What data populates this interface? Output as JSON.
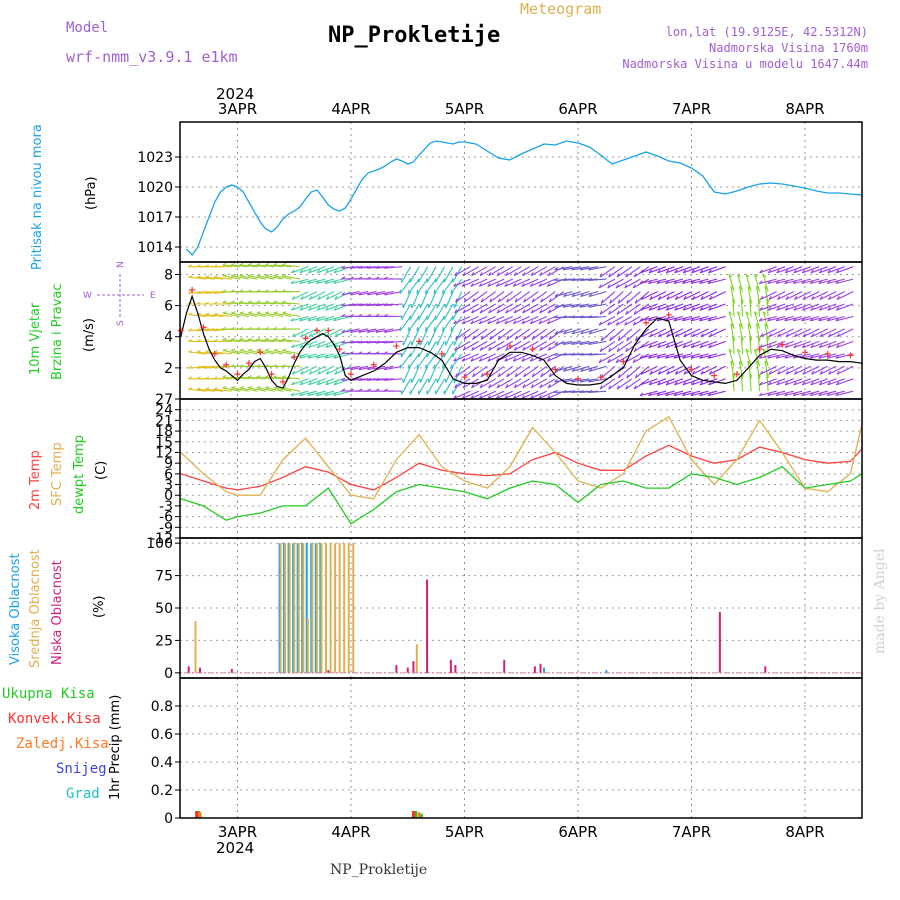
{
  "header": {
    "model_label": "Model",
    "model_name": "wrf-nmm_v3.9.1 e1km",
    "title": "NP_Prokletije",
    "subtitle": "Meteogram",
    "lonlat": "lon,lat (19.9125E, 42.5312N)",
    "elevation": "Nadmorska Visina 1760m",
    "model_elevation": "Nadmorska Visina u modelu 1647.44m"
  },
  "x_axis": {
    "year": "2024",
    "days": [
      "3APR",
      "4APR",
      "5APR",
      "6APR",
      "7APR",
      "8APR"
    ]
  },
  "footer": {
    "station": "NP_Prokletije",
    "credit": "made by Angel"
  },
  "wind_compass": {
    "north": "N",
    "south": "S",
    "west": "W",
    "east": "E"
  },
  "colors": {
    "pressure": "#1aa3e6",
    "wind_speed": "#000000",
    "gust": "#ff3030",
    "t2m": "#ff4040",
    "sfc": "#e0b050",
    "dewpt": "#22cc22",
    "high_cloud": "#1aa3e6",
    "mid_cloud": "#e0b050",
    "low_cloud": "#d0207a"
  },
  "panels": {
    "pressure": {
      "label": "Pritisak na nivou mora",
      "unit": "(hPa)"
    },
    "wind": {
      "label1": "10m Vjetar",
      "label2": "Brzina i Pravac",
      "unit": "(m/s)"
    },
    "temp": {
      "label1": "2m Temp",
      "label2": "SFC Temp",
      "label3": "dewpt Temp",
      "unit": "(C)"
    },
    "cloud": {
      "label1": "Visoka Oblacnost",
      "label2": "Srednja Oblacnost",
      "label3": "Niska Oblacnost",
      "unit": "(%)"
    },
    "precip": {
      "unit": "1hr Precip (mm)",
      "legend": [
        {
          "text": "Ukupna Kisa",
          "color": "#22cc22"
        },
        {
          "text": "Konvek.Kisa",
          "color": "#ff3030"
        },
        {
          "text": "Zaledj.Kisa",
          "color": "#ff7a20"
        },
        {
          "text": "Snijeg",
          "color": "#4040e0"
        },
        {
          "text": "Grad",
          "color": "#20c0c0"
        }
      ]
    }
  },
  "chart_data": [
    {
      "type": "line",
      "name": "pressure",
      "ylabel": "(hPa)",
      "ylim": [
        1012.5,
        1026.5
      ],
      "yticks": [
        "1014",
        "1017",
        "1020",
        "1023"
      ],
      "x": [
        -0.45,
        -0.4,
        -0.35,
        -0.3,
        -0.25,
        -0.2,
        -0.15,
        -0.1,
        -0.05,
        0.0,
        0.05,
        0.1,
        0.15,
        0.2,
        0.25,
        0.3,
        0.35,
        0.4,
        0.45,
        0.5,
        0.55,
        0.6,
        0.65,
        0.7,
        0.75,
        0.8,
        0.85,
        0.9,
        0.95,
        1.0,
        1.05,
        1.1,
        1.15,
        1.2,
        1.25,
        1.3,
        1.35,
        1.4,
        1.45,
        1.5,
        1.55,
        1.6,
        1.65,
        1.7,
        1.75,
        1.8,
        1.85,
        1.9,
        1.95,
        2.0,
        2.1,
        2.2,
        2.3,
        2.4,
        2.5,
        2.6,
        2.7,
        2.8,
        2.9,
        3.0,
        3.1,
        3.2,
        3.3,
        3.4,
        3.5,
        3.6,
        3.7,
        3.8,
        3.9,
        4.0,
        4.1,
        4.2,
        4.3,
        4.4,
        4.5,
        4.6,
        4.7,
        4.8,
        4.9,
        5.0,
        5.1,
        5.2,
        5.3,
        5.4,
        5.5,
        5.6,
        5.7
      ],
      "y": [
        1013.8,
        1013.2,
        1014.0,
        1015.5,
        1017.0,
        1018.5,
        1019.5,
        1020.0,
        1020.2,
        1020.0,
        1019.5,
        1018.5,
        1017.5,
        1016.5,
        1015.8,
        1015.5,
        1016.0,
        1016.8,
        1017.3,
        1017.6,
        1018.0,
        1018.8,
        1019.5,
        1019.7,
        1019.0,
        1018.2,
        1017.8,
        1017.6,
        1017.9,
        1018.8,
        1019.8,
        1020.8,
        1021.4,
        1021.6,
        1021.8,
        1022.1,
        1022.5,
        1022.8,
        1022.6,
        1022.3,
        1022.5,
        1023.2,
        1023.8,
        1024.4,
        1024.6,
        1024.5,
        1024.4,
        1024.3,
        1024.5,
        1024.5,
        1024.3,
        1023.6,
        1022.9,
        1022.7,
        1023.3,
        1023.8,
        1024.3,
        1024.2,
        1024.6,
        1024.4,
        1024.0,
        1023.2,
        1022.3,
        1022.7,
        1023.1,
        1023.5,
        1023.1,
        1022.6,
        1022.4,
        1021.9,
        1021.1,
        1019.5,
        1019.3,
        1019.6,
        1020.0,
        1020.3,
        1020.4,
        1020.3,
        1020.1,
        1019.9,
        1019.6,
        1019.4,
        1019.4,
        1019.3,
        1019.2,
        1019.1,
        1019.0
      ]
    },
    {
      "type": "line",
      "name": "wind",
      "ylabel": "(m/s)",
      "ylim": [
        0,
        8.8
      ],
      "yticks": [
        "2",
        "4",
        "6",
        "8"
      ],
      "x": [
        -0.5,
        -0.45,
        -0.4,
        -0.35,
        -0.3,
        -0.25,
        -0.2,
        -0.15,
        -0.1,
        -0.05,
        0.0,
        0.05,
        0.1,
        0.15,
        0.2,
        0.25,
        0.3,
        0.35,
        0.4,
        0.45,
        0.5,
        0.55,
        0.6,
        0.65,
        0.7,
        0.75,
        0.8,
        0.85,
        0.9,
        0.95,
        1.0,
        1.1,
        1.2,
        1.3,
        1.4,
        1.5,
        1.6,
        1.7,
        1.8,
        1.9,
        2.0,
        2.1,
        2.2,
        2.3,
        2.4,
        2.5,
        2.6,
        2.7,
        2.8,
        2.9,
        3.0,
        3.1,
        3.2,
        3.3,
        3.4,
        3.5,
        3.6,
        3.7,
        3.8,
        3.9,
        4.0,
        4.1,
        4.2,
        4.3,
        4.4,
        4.5,
        4.6,
        4.7,
        4.8,
        4.9,
        5.0,
        5.1,
        5.2,
        5.3,
        5.4,
        5.5,
        5.6,
        5.7
      ],
      "y": [
        4.0,
        5.5,
        6.6,
        5.5,
        4.2,
        3.2,
        2.5,
        2.0,
        1.8,
        1.5,
        1.2,
        1.6,
        1.9,
        2.4,
        2.6,
        2.0,
        1.2,
        0.8,
        0.7,
        1.4,
        2.3,
        3.0,
        3.5,
        3.8,
        4.0,
        4.2,
        4.0,
        3.5,
        2.8,
        1.5,
        1.2,
        1.5,
        1.8,
        2.3,
        3.0,
        3.3,
        3.3,
        3.0,
        2.5,
        1.3,
        1.0,
        1.0,
        1.2,
        2.5,
        3.0,
        3.0,
        2.8,
        2.5,
        1.5,
        1.0,
        0.9,
        0.9,
        1.0,
        1.5,
        2.0,
        3.5,
        4.5,
        5.2,
        5.0,
        2.5,
        1.5,
        1.2,
        1.1,
        1.0,
        1.2,
        2.0,
        2.8,
        3.2,
        3.1,
        2.8,
        2.6,
        2.5,
        2.5,
        2.4,
        2.4,
        2.3,
        2.3,
        2.2
      ]
    },
    {
      "type": "line",
      "name": "temperature",
      "ylabel": "(C)",
      "ylim": [
        -12,
        27
      ],
      "yticks": [
        "-12",
        "-9",
        "-6",
        "-3",
        "0",
        "3",
        "6",
        "9",
        "12",
        "15",
        "18",
        "21",
        "24",
        "27"
      ],
      "series": [
        {
          "name": "2m Temp",
          "color": "#ff4040",
          "x": [
            -0.5,
            -0.3,
            -0.1,
            0.0,
            0.2,
            0.4,
            0.6,
            0.8,
            1.0,
            1.2,
            1.4,
            1.6,
            1.8,
            2.0,
            2.2,
            2.4,
            2.6,
            2.8,
            3.0,
            3.2,
            3.4,
            3.6,
            3.8,
            4.0,
            4.2,
            4.4,
            4.6,
            4.8,
            5.0,
            5.2,
            5.4,
            5.6,
            5.7
          ],
          "y": [
            6,
            4,
            2,
            1.5,
            2.5,
            5,
            8,
            6.5,
            3,
            1.5,
            5,
            9,
            7,
            6,
            5.5,
            6,
            10,
            12,
            9,
            7,
            7,
            11,
            14,
            11,
            9,
            10,
            13.5,
            12,
            10,
            9,
            9.5,
            13,
            16
          ]
        },
        {
          "name": "SFC Temp",
          "color": "#e0b050",
          "x": [
            -0.5,
            -0.3,
            -0.1,
            0.0,
            0.2,
            0.4,
            0.6,
            0.8,
            1.0,
            1.2,
            1.4,
            1.6,
            1.8,
            2.0,
            2.2,
            2.4,
            2.6,
            2.8,
            3.0,
            3.2,
            3.4,
            3.6,
            3.8,
            4.0,
            4.2,
            4.4,
            4.6,
            4.8,
            5.0,
            5.2,
            5.4,
            5.6,
            5.7
          ],
          "y": [
            12,
            6,
            1,
            0,
            0,
            10,
            16,
            8,
            0,
            -1,
            10,
            17,
            8,
            4,
            2,
            8,
            19,
            12,
            4,
            2,
            6,
            18,
            22,
            10,
            3,
            10,
            21,
            12,
            2,
            1,
            6,
            20,
            25
          ]
        },
        {
          "name": "dewpt Temp",
          "color": "#22cc22",
          "x": [
            -0.5,
            -0.3,
            -0.1,
            0.0,
            0.2,
            0.4,
            0.6,
            0.8,
            1.0,
            1.2,
            1.4,
            1.6,
            1.8,
            2.0,
            2.2,
            2.4,
            2.6,
            2.8,
            3.0,
            3.2,
            3.4,
            3.6,
            3.8,
            4.0,
            4.2,
            4.4,
            4.6,
            4.8,
            5.0,
            5.2,
            5.4,
            5.6,
            5.7
          ],
          "y": [
            -1,
            -3,
            -7,
            -6,
            -5,
            -3,
            -3,
            2,
            -8,
            -4,
            1,
            3,
            2,
            1,
            -1,
            2,
            4,
            3,
            -2,
            3,
            4,
            2,
            2,
            6,
            5,
            3,
            5,
            8,
            2,
            3,
            4,
            6,
            9
          ]
        }
      ]
    },
    {
      "type": "bar",
      "name": "cloud",
      "ylabel": "(%)",
      "ylim": [
        -4,
        104
      ],
      "yticks": [
        "0",
        "25",
        "50",
        "75",
        "100"
      ],
      "series": [
        {
          "name": "Visoka Oblacnost",
          "color": "#1aa3e6",
          "x": [
            0.37,
            0.41,
            0.45,
            0.49,
            0.53,
            0.57,
            0.61,
            0.65,
            0.69,
            0.73,
            2.7,
            3.25
          ],
          "y": [
            100,
            100,
            100,
            100,
            100,
            100,
            100,
            100,
            100,
            100,
            4,
            2
          ]
        },
        {
          "name": "Srednja Oblacnost",
          "color": "#e0b050",
          "x": [
            -0.37,
            0.38,
            0.42,
            0.46,
            0.5,
            0.54,
            0.58,
            0.62,
            0.66,
            0.7,
            0.74,
            0.78,
            0.82,
            0.86,
            0.9,
            0.94,
            0.98,
            1.02,
            1.58
          ],
          "y": [
            40,
            100,
            100,
            100,
            100,
            100,
            100,
            42,
            100,
            100,
            100,
            100,
            100,
            100,
            100,
            100,
            100,
            100,
            22
          ]
        },
        {
          "name": "Niska Oblacnost",
          "color": "#d0207a",
          "x": [
            -0.43,
            -0.33,
            -0.05,
            0.8,
            1.4,
            1.5,
            1.55,
            1.67,
            1.88,
            1.92,
            2.35,
            2.62,
            2.67,
            4.25,
            4.65
          ],
          "y": [
            5,
            4,
            3,
            2,
            6,
            4,
            9,
            72,
            10,
            6,
            10,
            5,
            7,
            47,
            5
          ]
        }
      ]
    },
    {
      "type": "bar",
      "name": "precipitation",
      "ylabel": "1hr Precip (mm)",
      "ylim": [
        0,
        1.0
      ],
      "yticks": [
        "0",
        "0.2",
        "0.4",
        "0.6",
        "0.8"
      ],
      "series": [
        {
          "name": "Ukupna Kisa",
          "color": "#22cc22",
          "x": [
            -0.34,
            1.57,
            1.62
          ],
          "y": [
            0.05,
            0.05,
            0.03
          ]
        },
        {
          "name": "Konvek.Kisa",
          "color": "#ff3030",
          "x": [
            -0.36,
            1.55
          ],
          "y": [
            0.05,
            0.05
          ]
        },
        {
          "name": "Zaledj.Kisa",
          "color": "#ff7a20",
          "x": [
            -0.33,
            1.6
          ],
          "y": [
            0.04,
            0.04
          ]
        }
      ]
    }
  ]
}
